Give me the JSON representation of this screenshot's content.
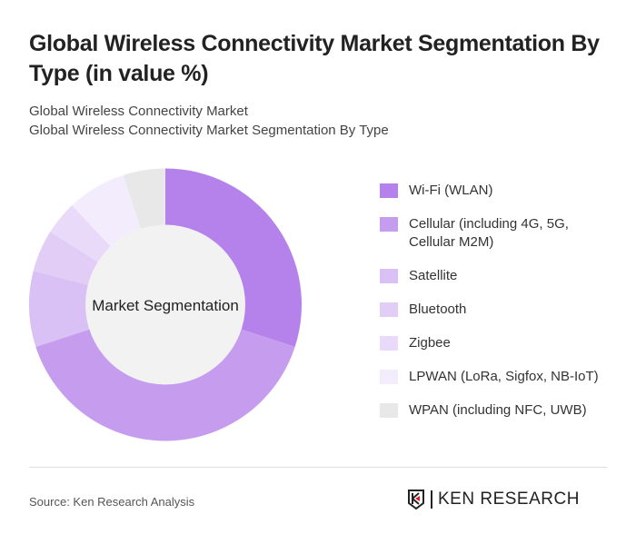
{
  "title": "Global Wireless Connectivity Market Segmentation By Type (in value %)",
  "subtitle1": "Global Wireless Connectivity Market",
  "subtitle2": "Global Wireless Connectivity Market Segmentation By Type",
  "source": "Source: Ken Research Analysis",
  "logo_text": "KEN RESEARCH",
  "chart_data": {
    "type": "pie",
    "donut": true,
    "center_label": "Market Segmentation",
    "legend_position": "right",
    "categories": [
      "Wi-Fi (WLAN)",
      "Cellular (including 4G, 5G, Cellular M2M)",
      "Satellite",
      "Bluetooth",
      "Zigbee",
      "LPWAN (LoRa, Sigfox, NB-IoT)",
      "WPAN (including NFC, UWB)"
    ],
    "values": [
      30,
      40,
      9,
      5,
      4,
      7,
      5
    ],
    "colors": [
      "#b482ea",
      "#c69dee",
      "#dac1f5",
      "#e2cdf7",
      "#e9dafa",
      "#f3ecfc",
      "#e8e8e8"
    ]
  }
}
